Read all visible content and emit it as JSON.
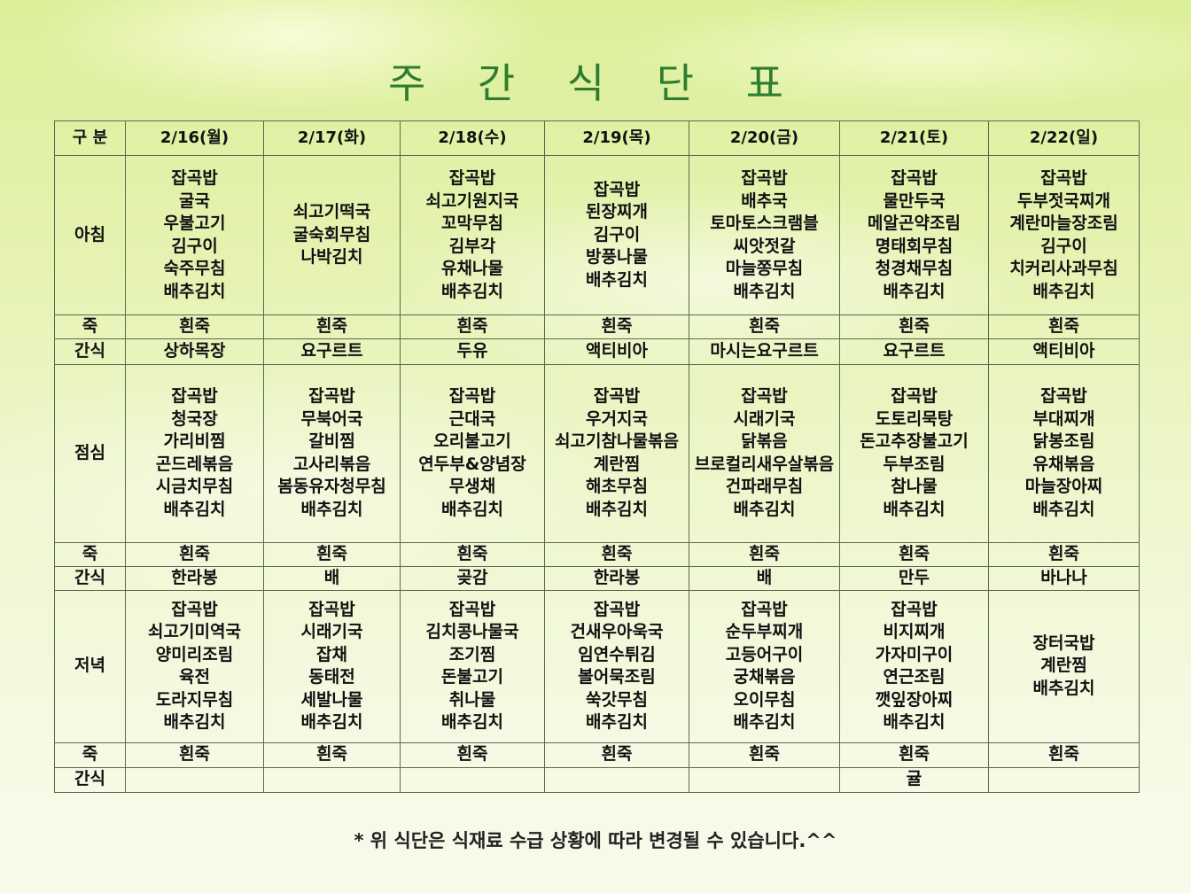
{
  "title": "주 간 식 단 표",
  "header": {
    "category_label": "구 분",
    "days": [
      "2/16(월)",
      "2/17(화)",
      "2/18(수)",
      "2/19(목)",
      "2/20(금)",
      "2/21(토)",
      "2/22(일)"
    ]
  },
  "rows": [
    {
      "label": "아침",
      "cells": [
        [
          "잡곡밥",
          "굴국",
          "우불고기",
          "김구이",
          "숙주무침",
          "배추김치"
        ],
        [
          "쇠고기떡국",
          "굴숙회무침",
          "나박김치"
        ],
        [
          "잡곡밥",
          "쇠고기원지국",
          "꼬막무침",
          "김부각",
          "유채나물",
          "배추김치"
        ],
        [
          "잡곡밥",
          "된장찌개",
          "김구이",
          "방풍나물",
          "배추김치"
        ],
        [
          "잡곡밥",
          "배추국",
          "토마토스크램블",
          "씨앗젓갈",
          "마늘쫑무침",
          "배추김치"
        ],
        [
          "잡곡밥",
          "물만두국",
          "메알곤약조림",
          "명태회무침",
          "청경채무침",
          "배추김치"
        ],
        [
          "잡곡밥",
          "두부젓국찌개",
          "계란마늘장조림",
          "김구이",
          "치커리사과무침",
          "배추김치"
        ]
      ]
    },
    {
      "label": "죽",
      "cells": [
        [
          "흰죽"
        ],
        [
          "흰죽"
        ],
        [
          "흰죽"
        ],
        [
          "흰죽"
        ],
        [
          "흰죽"
        ],
        [
          "흰죽"
        ],
        [
          "흰죽"
        ]
      ]
    },
    {
      "label": "간식",
      "cells": [
        [
          "상하목장"
        ],
        [
          "요구르트"
        ],
        [
          "두유"
        ],
        [
          "액티비아"
        ],
        [
          "마시는요구르트"
        ],
        [
          "요구르트"
        ],
        [
          "액티비아"
        ]
      ]
    },
    {
      "label": "점심",
      "cells": [
        [
          "잡곡밥",
          "청국장",
          "가리비찜",
          "곤드레볶음",
          "시금치무침",
          "배추김치"
        ],
        [
          "잡곡밥",
          "무북어국",
          "갈비찜",
          "고사리볶음",
          "봄동유자청무침",
          "배추김치"
        ],
        [
          "잡곡밥",
          "근대국",
          "오리불고기",
          "연두부&양념장",
          "무생채",
          "배추김치"
        ],
        [
          "잡곡밥",
          "우거지국",
          "쇠고기참나물볶음",
          "계란찜",
          "해초무침",
          "배추김치"
        ],
        [
          "잡곡밥",
          "시래기국",
          "닭볶음",
          "브로컬리새우살볶음",
          "건파래무침",
          "배추김치"
        ],
        [
          "잡곡밥",
          "도토리묵탕",
          "돈고추장불고기",
          "두부조림",
          "참나물",
          "배추김치"
        ],
        [
          "잡곡밥",
          "부대찌개",
          "닭봉조림",
          "유채볶음",
          "마늘장아찌",
          "배추김치"
        ]
      ]
    },
    {
      "label": "죽",
      "cells": [
        [
          "흰죽"
        ],
        [
          "흰죽"
        ],
        [
          "흰죽"
        ],
        [
          "흰죽"
        ],
        [
          "흰죽"
        ],
        [
          "흰죽"
        ],
        [
          "흰죽"
        ]
      ]
    },
    {
      "label": "간식",
      "cells": [
        [
          "한라봉"
        ],
        [
          "배"
        ],
        [
          "곶감"
        ],
        [
          "한라봉"
        ],
        [
          "배"
        ],
        [
          "만두"
        ],
        [
          "바나나"
        ]
      ]
    },
    {
      "label": "저녁",
      "cells": [
        [
          "잡곡밥",
          "쇠고기미역국",
          "양미리조림",
          "육전",
          "도라지무침",
          "배추김치"
        ],
        [
          "잡곡밥",
          "시래기국",
          "잡채",
          "동태전",
          "세발나물",
          "배추김치"
        ],
        [
          "잡곡밥",
          "김치콩나물국",
          "조기찜",
          "돈불고기",
          "취나물",
          "배추김치"
        ],
        [
          "잡곡밥",
          "건새우아욱국",
          "임연수튀김",
          "볼어묵조림",
          "쑥갓무침",
          "배추김치"
        ],
        [
          "잡곡밥",
          "순두부찌개",
          "고등어구이",
          "궁채볶음",
          "오이무침",
          "배추김치"
        ],
        [
          "잡곡밥",
          "비지찌개",
          "가자미구이",
          "연근조림",
          "깻잎장아찌",
          "배추김치"
        ],
        [
          "장터국밥",
          "계란찜",
          "배추김치"
        ]
      ]
    },
    {
      "label": "죽",
      "cells": [
        [
          "흰죽"
        ],
        [
          "흰죽"
        ],
        [
          "흰죽"
        ],
        [
          "흰죽"
        ],
        [
          "흰죽"
        ],
        [
          "흰죽"
        ],
        [
          "흰죽"
        ]
      ]
    },
    {
      "label": "간식",
      "cells": [
        [],
        [],
        [],
        [],
        [],
        [
          "귤"
        ],
        []
      ]
    }
  ],
  "note": "* 위 식단은 식재료 수급 상황에 따라 변경될 수 있습니다.^^"
}
